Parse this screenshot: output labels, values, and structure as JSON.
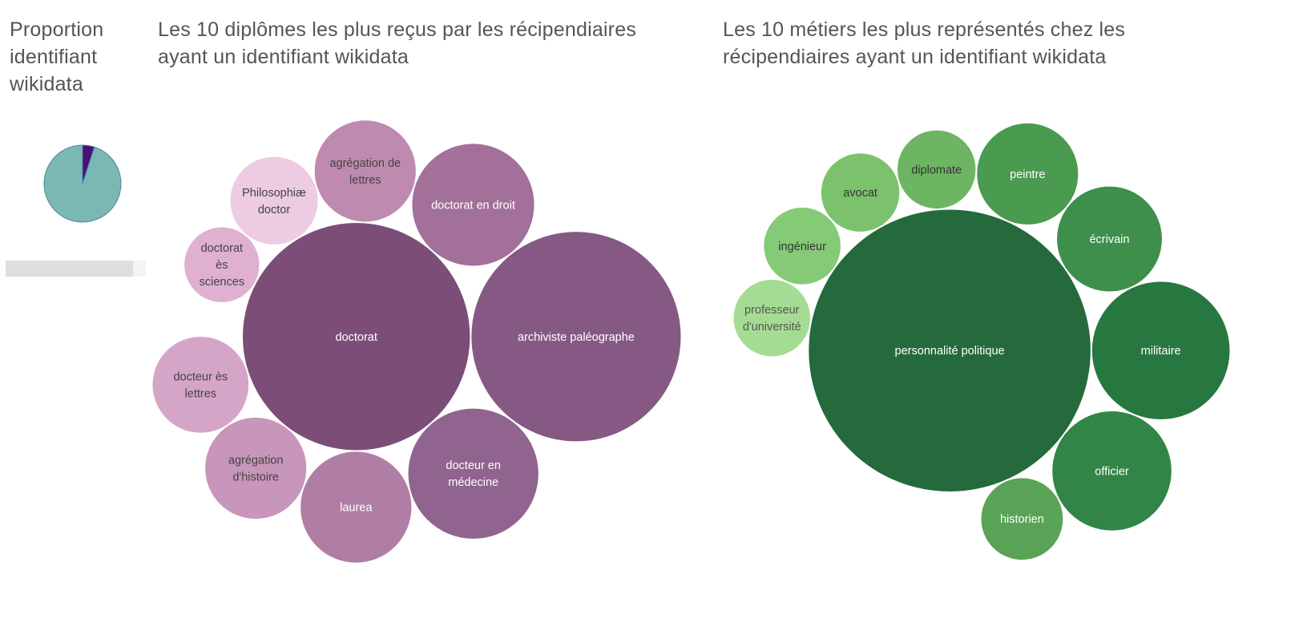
{
  "chart_data": [
    {
      "type": "pie",
      "title": "Proportion identifiant wikidata",
      "slices": [
        {
          "value": 0.95,
          "color": "#7cb8b3"
        },
        {
          "value": 0.05,
          "color": "#4b0f78"
        }
      ],
      "bar_value": 0.91
    },
    {
      "type": "bubble",
      "title": "Les 10 diplômes les plus reçus par les récipendiaires ayant un identifiant wikidata",
      "items": [
        {
          "label": "doctorat",
          "value": 100,
          "color": "#7b4d77",
          "text_color": "#ffffff"
        },
        {
          "label": "archiviste paléographe",
          "value": 85,
          "color": "#865984",
          "text_color": "#ffffff"
        },
        {
          "label": "docteur en médecine",
          "value": 33,
          "color": "#90648e",
          "text_color": "#ffffff"
        },
        {
          "label": "doctorat en droit",
          "value": 29,
          "color": "#a27099",
          "text_color": "#ffffff"
        },
        {
          "label": "laurea",
          "value": 24,
          "color": "#b07ea5",
          "text_color": "#ffffff"
        },
        {
          "label": "agrégation de lettres",
          "value": 20,
          "color": "#bf8aaf",
          "text_color": "#444444"
        },
        {
          "label": "agrégation d'histoire",
          "value": 20,
          "color": "#c896ba",
          "text_color": "#444444"
        },
        {
          "label": "docteur ès lettres",
          "value": 18,
          "color": "#d5a5c8",
          "text_color": "#444444"
        },
        {
          "label": "Philosophiæ doctor",
          "value": 15,
          "color": "#eccbe3",
          "text_color": "#444444"
        },
        {
          "label": "doctorat ès sciences",
          "value": 11,
          "color": "#dfb0d0",
          "text_color": "#444444"
        }
      ]
    },
    {
      "type": "bubble",
      "title": "Les 10 métiers les plus représentés chez les récipendiaires ayant un identifiant wikidata",
      "items": [
        {
          "label": "personnalité politique",
          "value": 100,
          "color": "#246a3c",
          "text_color": "#ffffff"
        },
        {
          "label": "militaire",
          "value": 24,
          "color": "#277840",
          "text_color": "#ffffff"
        },
        {
          "label": "officier",
          "value": 18,
          "color": "#318546",
          "text_color": "#ffffff"
        },
        {
          "label": "écrivain",
          "value": 14,
          "color": "#3e8f4c",
          "text_color": "#ffffff"
        },
        {
          "label": "peintre",
          "value": 13,
          "color": "#4a9a50",
          "text_color": "#ffffff"
        },
        {
          "label": "historien",
          "value": 8.5,
          "color": "#5aa356",
          "text_color": "#ffffff"
        },
        {
          "label": "diplomate",
          "value": 7.8,
          "color": "#6db562",
          "text_color": "#333333"
        },
        {
          "label": "avocat",
          "value": 7.8,
          "color": "#7cc26d",
          "text_color": "#333333"
        },
        {
          "label": "ingénieur",
          "value": 7.5,
          "color": "#85ca76",
          "text_color": "#333333"
        },
        {
          "label": "professeur d'université",
          "value": 7.5,
          "color": "#a5dc93",
          "text_color": "#555555"
        }
      ]
    }
  ]
}
